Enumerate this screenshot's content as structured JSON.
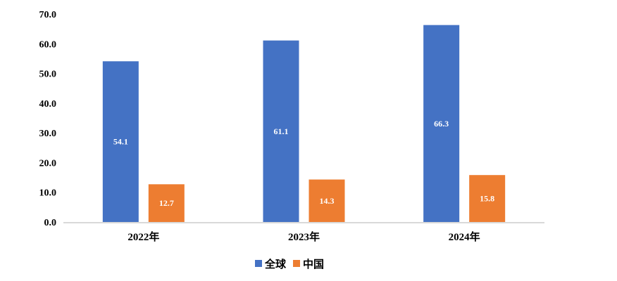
{
  "chart_data": {
    "type": "bar",
    "categories": [
      "2022年",
      "2023年",
      "2024年"
    ],
    "series": [
      {
        "name": "全球",
        "values": [
          54.1,
          61.1,
          66.3
        ],
        "color": "#4472C4"
      },
      {
        "name": "中国",
        "values": [
          12.7,
          14.3,
          15.8
        ],
        "color": "#ED7D31"
      }
    ],
    "ylim": [
      0,
      70
    ],
    "yticks": [
      "0.0",
      "10.0",
      "20.0",
      "30.0",
      "40.0",
      "50.0",
      "60.0",
      "70.0"
    ],
    "grid": false,
    "legend": "bottom",
    "data_labels": true
  }
}
